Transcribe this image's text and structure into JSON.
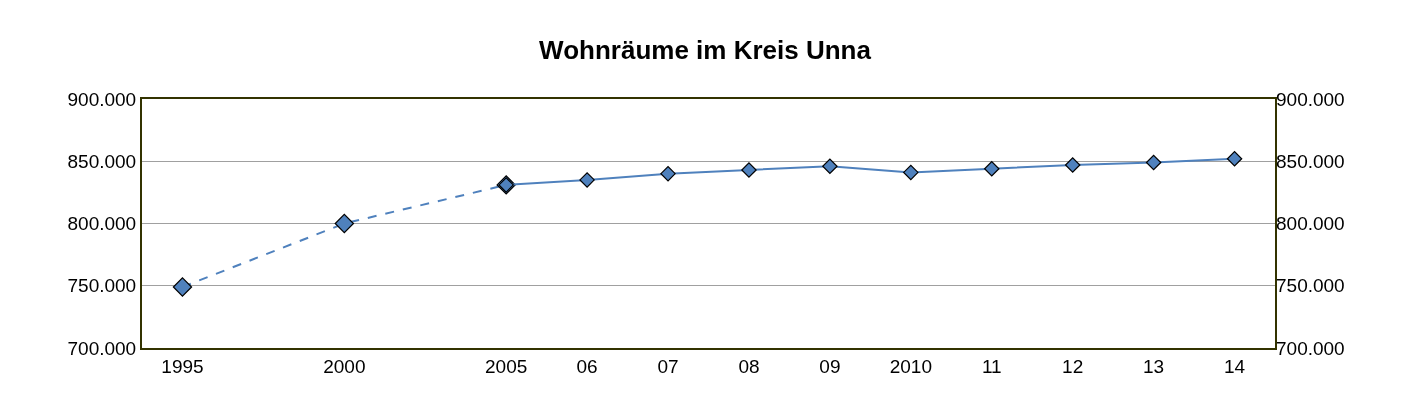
{
  "chart_data": {
    "type": "line",
    "title": "Wohnräume im Kreis Unna",
    "categories": [
      "1995",
      null,
      "2000",
      null,
      "2005",
      "06",
      "07",
      "08",
      "09",
      "2010",
      "11",
      "12",
      "13",
      "14"
    ],
    "series": [
      {
        "color": "#4f81bd",
        "line_style": "dashed",
        "values": [
          749000,
          null,
          800000,
          null,
          831000,
          null,
          null,
          null,
          null,
          null,
          null,
          null,
          null,
          null
        ]
      },
      {
        "color": "#4f81bd",
        "line_style": "solid",
        "values": [
          null,
          null,
          null,
          null,
          831000,
          835000,
          840000,
          843000,
          846000,
          841000,
          844000,
          847000,
          849000,
          852000
        ]
      }
    ],
    "marker": "diamond",
    "ylim": [
      700000,
      900000
    ],
    "yticks": [
      {
        "value": 700000,
        "label": "700.000"
      },
      {
        "value": 750000,
        "label": "750.000"
      },
      {
        "value": 800000,
        "label": "800.000"
      },
      {
        "value": 850000,
        "label": "850.000"
      },
      {
        "value": 900000,
        "label": "900.000"
      }
    ],
    "y2lim": [
      700000,
      900000
    ],
    "y2ticks": [
      {
        "value": 700000,
        "label": "700.000"
      },
      {
        "value": 750000,
        "label": "750.000"
      },
      {
        "value": 800000,
        "label": "800.000"
      },
      {
        "value": 850000,
        "label": "850.000"
      },
      {
        "value": 900000,
        "label": "900.000"
      }
    ],
    "grid": "y"
  }
}
